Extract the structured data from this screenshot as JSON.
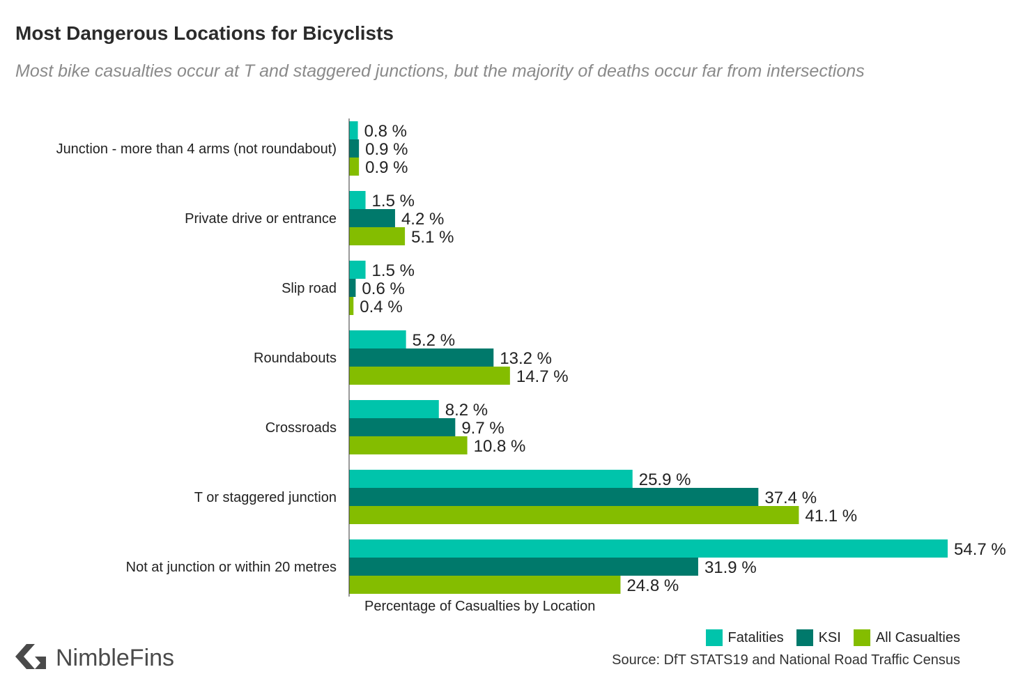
{
  "header": {
    "title": "Most Dangerous Locations for Bicyclists",
    "subtitle": "Most bike casualties occur at T and staggered junctions, but the majority of deaths occur far from intersections"
  },
  "chart_data": {
    "type": "bar",
    "orientation": "horizontal",
    "xlabel": "Percentage of Casualties by Location",
    "value_suffix": " %",
    "categories": [
      "Junction - more than 4 arms (not roundabout)",
      "Private drive or entrance",
      "Slip road",
      "Roundabouts",
      "Crossroads",
      "T or staggered junction",
      "Not at junction or within 20 metres"
    ],
    "series": [
      {
        "name": "Fatalities",
        "color": "#00c4ab",
        "values": [
          0.8,
          1.5,
          1.5,
          5.2,
          8.2,
          25.9,
          54.7
        ]
      },
      {
        "name": "KSI",
        "color": "#00796b",
        "values": [
          0.9,
          4.2,
          0.6,
          13.2,
          9.7,
          37.4,
          31.9
        ]
      },
      {
        "name": "All Casualties",
        "color": "#84bd00",
        "values": [
          0.9,
          5.1,
          0.4,
          14.7,
          10.8,
          41.1,
          24.8
        ]
      }
    ],
    "grid": false,
    "legend_position": "bottom-right"
  },
  "footer": {
    "source": "Source: DfT STATS19 and National Road Traffic Census",
    "logo_text": "NimbleFins",
    "logo_icon": "nimblefins-chevron-icon"
  }
}
